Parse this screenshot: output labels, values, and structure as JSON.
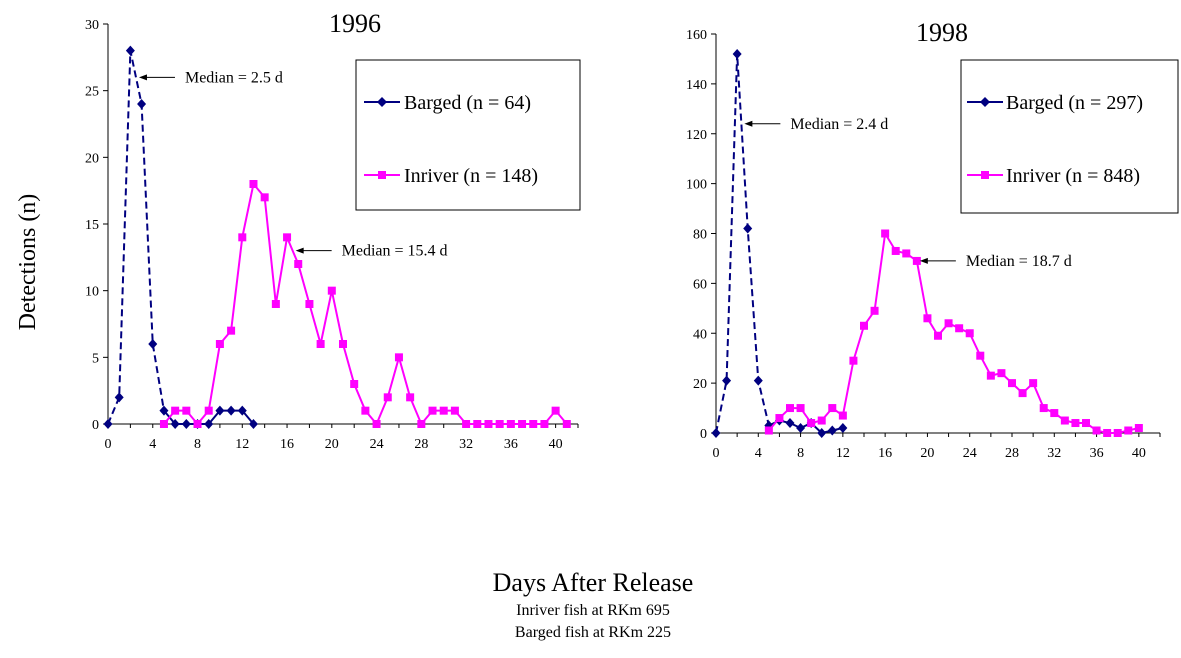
{
  "y_axis_label": "Detections (n)",
  "x_axis_label": "Days After Release",
  "footnotes": [
    "Inriver fish at RKm 695",
    "Barged fish at RKm 225"
  ],
  "colors": {
    "barged": "#000080",
    "inriver": "#FF00FF",
    "axis": "#000000"
  },
  "chart_data": [
    {
      "type": "line",
      "title": "1996",
      "xlim": [
        0,
        42
      ],
      "ylim": [
        0,
        30
      ],
      "xticks": [
        0,
        4,
        8,
        12,
        16,
        20,
        24,
        28,
        32,
        36,
        40
      ],
      "yticks": [
        0,
        5,
        10,
        15,
        20,
        25,
        30
      ],
      "legend_position": "top-right",
      "series": [
        {
          "name": "Barged (n = 64)",
          "marker": "diamond",
          "line": "dashed-then-solid",
          "x": [
            0,
            1,
            2,
            3,
            4,
            5,
            6,
            7,
            8,
            9,
            10,
            11,
            12,
            13
          ],
          "y": [
            0,
            2,
            28,
            24,
            6,
            1,
            0,
            0,
            0,
            0,
            1,
            1,
            1,
            0
          ]
        },
        {
          "name": "Inriver (n = 148)",
          "marker": "square",
          "line": "solid",
          "x": [
            5,
            6,
            7,
            8,
            9,
            10,
            11,
            12,
            13,
            14,
            15,
            16,
            17,
            18,
            19,
            20,
            21,
            22,
            23,
            24,
            25,
            26,
            27,
            28,
            29,
            30,
            31,
            32,
            33,
            34,
            35,
            36,
            37,
            38,
            39,
            40,
            41
          ],
          "y": [
            0,
            1,
            1,
            0,
            1,
            6,
            7,
            14,
            18,
            17,
            9,
            14,
            12,
            9,
            6,
            10,
            6,
            3,
            1,
            0,
            2,
            5,
            2,
            0,
            1,
            1,
            1,
            0,
            0,
            0,
            0,
            0,
            0,
            0,
            0,
            1,
            0
          ]
        }
      ],
      "annotations": [
        {
          "text": "Median = 2.5 d",
          "series": 0,
          "x": 2.5
        },
        {
          "text": "Median = 15.4 d",
          "series": 1,
          "x": 16.5
        }
      ]
    },
    {
      "type": "line",
      "title": "1998",
      "xlim": [
        0,
        42
      ],
      "ylim": [
        0,
        160
      ],
      "xticks": [
        0,
        4,
        8,
        12,
        16,
        20,
        24,
        28,
        32,
        36,
        40
      ],
      "yticks": [
        0,
        20,
        40,
        60,
        80,
        100,
        120,
        140,
        160
      ],
      "legend_position": "top-right",
      "series": [
        {
          "name": "Barged (n = 297)",
          "marker": "diamond",
          "line": "dashed-then-solid",
          "x": [
            0,
            1,
            2,
            3,
            4,
            5,
            6,
            7,
            8,
            9,
            10,
            11,
            12
          ],
          "y": [
            0,
            21,
            152,
            82,
            21,
            3,
            5,
            4,
            2,
            4,
            0,
            1,
            2
          ]
        },
        {
          "name": "Inriver (n = 848)",
          "marker": "square",
          "line": "solid",
          "x": [
            5,
            6,
            7,
            8,
            9,
            10,
            11,
            12,
            13,
            14,
            15,
            16,
            17,
            18,
            19,
            20,
            21,
            22,
            23,
            24,
            25,
            26,
            27,
            28,
            29,
            30,
            31,
            32,
            33,
            34,
            35,
            36,
            37,
            38,
            39,
            40
          ],
          "y": [
            1,
            6,
            10,
            10,
            4,
            5,
            10,
            7,
            29,
            43,
            49,
            80,
            73,
            72,
            69,
            46,
            39,
            44,
            42,
            40,
            31,
            23,
            24,
            20,
            16,
            20,
            10,
            8,
            5,
            4,
            4,
            1,
            0,
            0,
            1,
            2
          ]
        }
      ],
      "annotations": [
        {
          "text": "Median = 2.4 d",
          "series": 0,
          "x": 2.4
        },
        {
          "text": "Median = 18.7 d",
          "series": 1,
          "x": 19
        }
      ]
    }
  ]
}
